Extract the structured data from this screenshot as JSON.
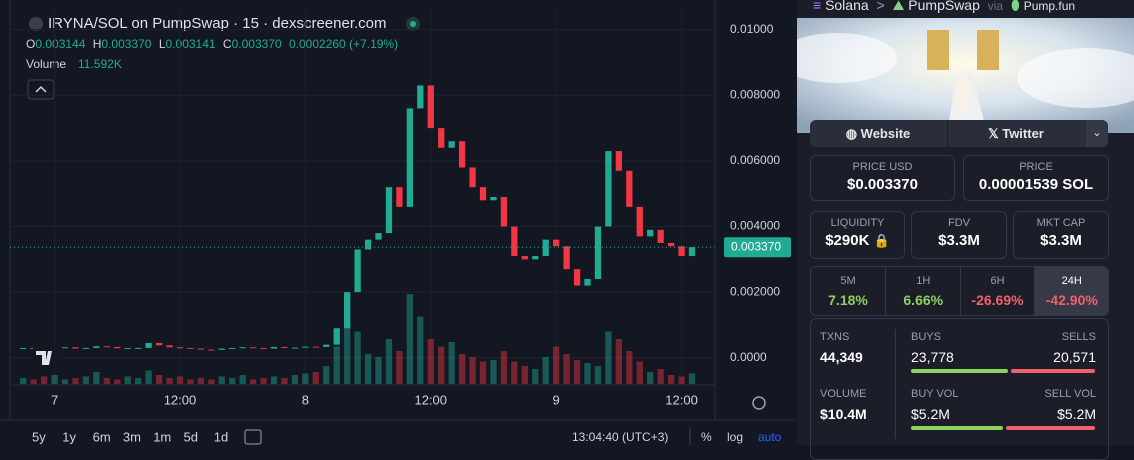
{
  "header": {
    "title": "IRYNA/SOL on PumpSwap · 15 · dexscreener.com",
    "ohlc": [
      {
        "label": "O",
        "value": "0.003144"
      },
      {
        "label": "H",
        "value": "0.003370"
      },
      {
        "label": "L",
        "value": "0.003141"
      },
      {
        "label": "C",
        "value": "0.003370"
      }
    ],
    "change": "0.0002260 (+7.19%)",
    "volume_label": "Volume",
    "volume_value": "11.592K"
  },
  "chart": {
    "type": "candlestick",
    "up_color": "#22ab94",
    "down_color": "#f23645",
    "x": [
      -3,
      -2,
      -1,
      0,
      1,
      2,
      3,
      4,
      5,
      6,
      7,
      8,
      9,
      10,
      11,
      12,
      13,
      14,
      15,
      16,
      17,
      18,
      19,
      20,
      21,
      22,
      23,
      24,
      25,
      26,
      27,
      28,
      29,
      30,
      31,
      32,
      33,
      34,
      35,
      36,
      37,
      38,
      39,
      40,
      41,
      42,
      43,
      44,
      45,
      46,
      47,
      48,
      49,
      50,
      51,
      52,
      53,
      54,
      55,
      56,
      57,
      58,
      59,
      60,
      61
    ],
    "values": [
      0.0003,
      0.00028,
      0.00025,
      0.0003,
      0.00032,
      0.00028,
      0.0003,
      0.00035,
      0.00033,
      0.00029,
      0.0003,
      0.0003,
      0.00045,
      0.00038,
      0.00032,
      0.0003,
      0.00028,
      0.00025,
      0.00024,
      0.00028,
      0.0003,
      0.00032,
      0.0003,
      0.00028,
      0.00033,
      0.0003,
      0.00031,
      0.00034,
      0.00033,
      0.0004,
      0.0009,
      0.002,
      0.0033,
      0.0036,
      0.0038,
      0.0052,
      0.0046,
      0.0076,
      0.0083,
      0.007,
      0.0064,
      0.0066,
      0.0058,
      0.0052,
      0.0048,
      0.0049,
      0.004,
      0.0031,
      0.003,
      0.0031,
      0.0036,
      0.0034,
      0.0027,
      0.0022,
      0.0024,
      0.004,
      0.0063,
      0.0057,
      0.0046,
      0.0037,
      0.0039,
      0.0035,
      0.0034,
      0.0031,
      0.00337
    ],
    "volumes": [
      4,
      3,
      5,
      6,
      3,
      4,
      5,
      8,
      4,
      3,
      5,
      4,
      9,
      6,
      4,
      5,
      3,
      4,
      3,
      5,
      4,
      6,
      3,
      4,
      5,
      4,
      6,
      7,
      8,
      12,
      25,
      40,
      35,
      20,
      18,
      30,
      22,
      60,
      45,
      30,
      25,
      28,
      20,
      18,
      15,
      16,
      22,
      15,
      12,
      10,
      18,
      25,
      20,
      16,
      14,
      12,
      35,
      30,
      22,
      15,
      8,
      10,
      6,
      5,
      7
    ],
    "xlim": [
      -3.5,
      63.2
    ],
    "ylim": [
      -0.0008,
      0.0106
    ],
    "xticks": [
      {
        "value": 0,
        "label": "7"
      },
      {
        "value": 12,
        "label": "12:00"
      },
      {
        "value": 24,
        "label": "8"
      },
      {
        "value": 36,
        "label": "12:00"
      },
      {
        "value": 48,
        "label": "9"
      },
      {
        "value": 60,
        "label": "12:00"
      }
    ],
    "yticks": [
      {
        "value": 0.01,
        "label": "0.01000"
      },
      {
        "value": 0.008,
        "label": "0.008000"
      },
      {
        "value": 0.006,
        "label": "0.006000"
      },
      {
        "value": 0.004,
        "label": "0.004000"
      },
      {
        "value": 0.002,
        "label": "0.002000"
      },
      {
        "value": 0,
        "label": "0.0000"
      }
    ],
    "last_price": {
      "value": 0.00337,
      "label": "0.003370"
    }
  },
  "toolbar": {
    "ranges": [
      "5y",
      "1y",
      "6m",
      "3m",
      "1m",
      "5d",
      "1d"
    ],
    "time": "13:04:40 (UTC+3)",
    "percent": "%",
    "log": "log",
    "auto": "auto"
  },
  "panel": {
    "chain": "Solana",
    "sep": ">",
    "dex": "PumpSwap",
    "via": "via",
    "launch": "Pump.fun",
    "website": "Website",
    "twitter": "Twitter",
    "price_usd": {
      "label": "PRICE USD",
      "value": "$0.003370"
    },
    "price_sol": {
      "label": "PRICE",
      "value": "0.00001539 SOL"
    },
    "liquidity": {
      "label": "LIQUIDITY",
      "value": "$290K"
    },
    "fdv": {
      "label": "FDV",
      "value": "$3.3M"
    },
    "mkt_cap": {
      "label": "MKT CAP",
      "value": "$3.3M"
    },
    "periods": [
      {
        "label": "5M",
        "value": "7.18%",
        "color": "#8bd35e"
      },
      {
        "label": "1H",
        "value": "6.66%",
        "color": "#8bd35e"
      },
      {
        "label": "6H",
        "value": "-26.69%",
        "color": "#f0616d"
      },
      {
        "label": "24H",
        "value": "-42.90%",
        "color": "#f0616d"
      }
    ],
    "txns": {
      "label": "TXNS",
      "value": "44,349"
    },
    "buys": {
      "label": "BUYS",
      "value": "23,778"
    },
    "sells": {
      "label": "SELLS",
      "value": "20,571"
    },
    "volume": {
      "label": "VOLUME",
      "value": "$10.4M"
    },
    "buy_vol": {
      "label": "BUY VOL",
      "value": "$5.2M"
    },
    "sell_vol": {
      "label": "SELL VOL",
      "value": "$5.2M"
    }
  }
}
